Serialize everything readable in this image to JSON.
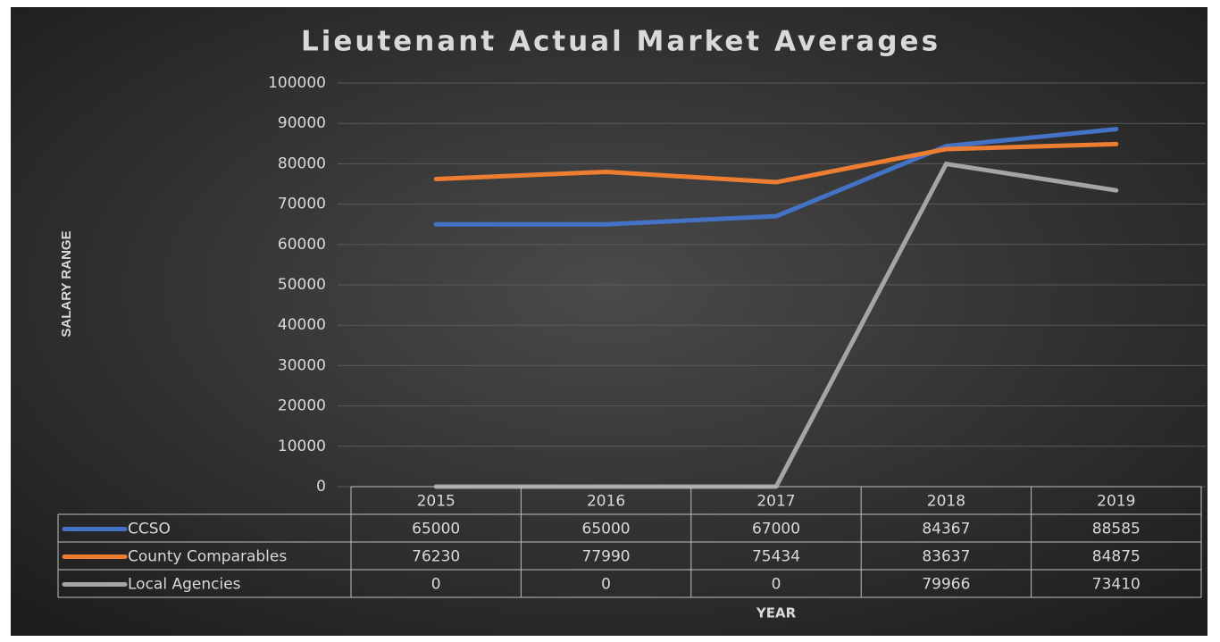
{
  "chart_data": {
    "type": "line",
    "title": "Lieutenant Actual Market Averages",
    "y_label": "SALARY RANGE",
    "x_label": "YEAR",
    "categories": [
      "2015",
      "2016",
      "2017",
      "2018",
      "2019"
    ],
    "series": [
      {
        "name": "CCSO",
        "color": "#4472c4",
        "values": [
          65000,
          65000,
          67000,
          84367,
          88585
        ]
      },
      {
        "name": "County Comparables",
        "color": "#ed7d31",
        "values": [
          76230,
          77990,
          75434,
          83637,
          84875
        ]
      },
      {
        "name": "Local Agencies",
        "color": "#a5a5a5",
        "values": [
          0,
          0,
          0,
          79966,
          73410
        ]
      }
    ],
    "ylim": [
      0,
      100000
    ],
    "yticks": [
      0,
      10000,
      20000,
      30000,
      40000,
      50000,
      60000,
      70000,
      80000,
      90000,
      100000
    ],
    "grid": true,
    "data_table": true
  }
}
